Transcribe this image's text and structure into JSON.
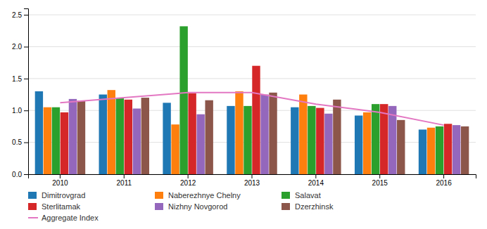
{
  "chart_data": {
    "type": "bar",
    "categories": [
      "2010",
      "2011",
      "2012",
      "2013",
      "2014",
      "2015",
      "2016"
    ],
    "series": [
      {
        "name": "Dimitrovgrad",
        "values": [
          1.3,
          1.25,
          1.12,
          1.07,
          1.05,
          0.92,
          0.7
        ]
      },
      {
        "name": "Naberezhnye Chelny",
        "values": [
          1.05,
          1.32,
          0.78,
          1.3,
          1.25,
          0.97,
          0.73
        ]
      },
      {
        "name": "Salavat",
        "values": [
          1.05,
          1.2,
          2.32,
          1.07,
          1.07,
          1.1,
          0.75
        ]
      },
      {
        "name": "Sterlitamak",
        "values": [
          0.97,
          1.17,
          1.27,
          1.7,
          1.04,
          1.1,
          0.79
        ]
      },
      {
        "name": "Nizhny Novgorod",
        "values": [
          1.18,
          1.03,
          0.94,
          1.25,
          0.95,
          1.07,
          0.77
        ]
      },
      {
        "name": "Dzerzhinsk",
        "values": [
          1.15,
          1.2,
          1.16,
          1.28,
          1.17,
          0.85,
          0.75
        ]
      },
      {
        "name": "Aggregate Index",
        "type": "line",
        "values": [
          1.12,
          1.2,
          1.28,
          1.28,
          1.1,
          0.97,
          0.77
        ]
      }
    ],
    "ylim": [
      0,
      2.6
    ],
    "yticks": [
      {
        "value": 0,
        "label": "0.0"
      },
      0.5,
      {
        "value": 1.0,
        "label": "1.0"
      },
      1.5,
      {
        "value": 2.0,
        "label": "2.0"
      },
      2.5
    ],
    "grid": true,
    "legend": "bottom"
  }
}
